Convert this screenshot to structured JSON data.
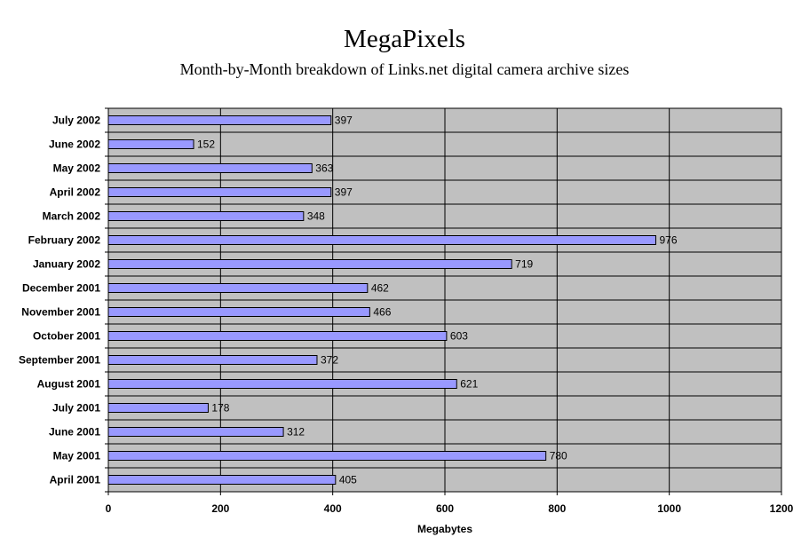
{
  "chart_data": {
    "type": "bar",
    "orientation": "horizontal",
    "title": "MegaPixels",
    "subtitle": "Month-by-Month breakdown of Links.net digital camera archive sizes",
    "xlabel": "Megabytes",
    "ylabel": "",
    "xlim": [
      0,
      1200
    ],
    "ticks": [
      0,
      200,
      400,
      600,
      800,
      1000,
      1200
    ],
    "grid": true,
    "legend": "none",
    "colors": {
      "bar": "#9999ff",
      "plot_bg": "#c0c0c0",
      "grid": "#000000"
    },
    "categories": [
      "July 2002",
      "June 2002",
      "May 2002",
      "April 2002",
      "March 2002",
      "February 2002",
      "January 2002",
      "December 2001",
      "November 2001",
      "October 2001",
      "September 2001",
      "August 2001",
      "July 2001",
      "June 2001",
      "May 2001",
      "April 2001"
    ],
    "values": [
      397,
      152,
      363,
      397,
      348,
      976,
      719,
      462,
      466,
      603,
      372,
      621,
      178,
      312,
      780,
      405
    ]
  }
}
